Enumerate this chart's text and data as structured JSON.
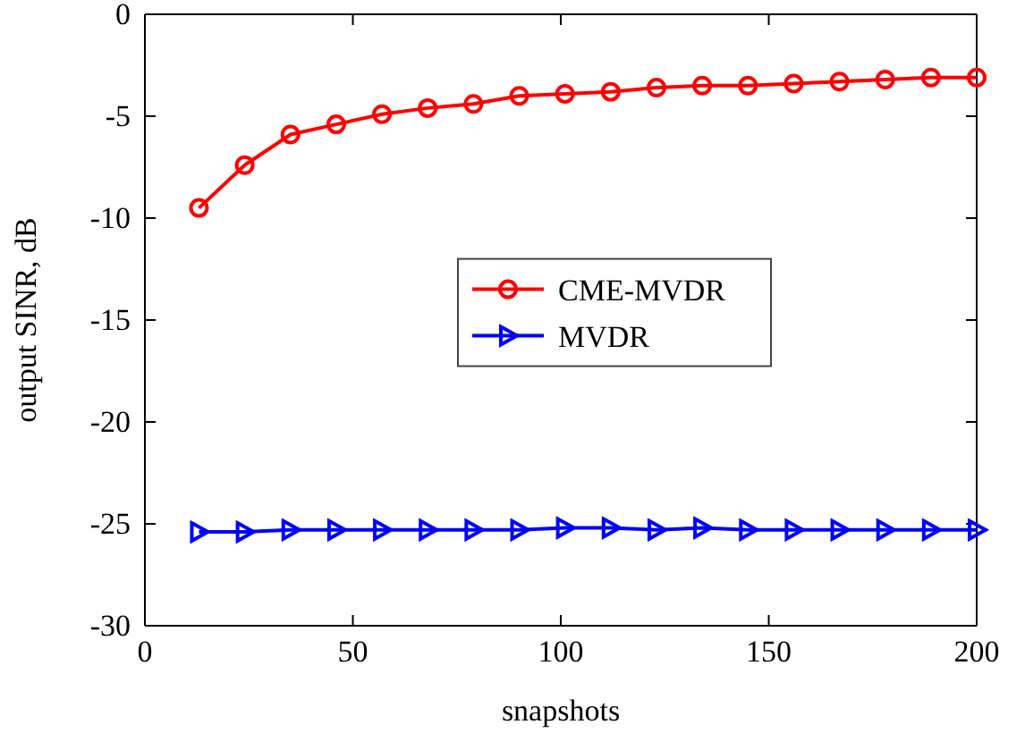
{
  "chart_data": {
    "type": "line",
    "xlabel": "snapshots",
    "ylabel": "output SINR, dB",
    "x": [
      13,
      24,
      35,
      46,
      57,
      68,
      79,
      90,
      101,
      112,
      123,
      134,
      145,
      156,
      167,
      178,
      189,
      200
    ],
    "xlim": [
      0,
      200
    ],
    "xticks": [
      0,
      50,
      100,
      150,
      200
    ],
    "ylim": [
      -30,
      0
    ],
    "yticks": [
      -30,
      -25,
      -20,
      -15,
      -10,
      -5,
      0
    ],
    "grid": false,
    "legend": "center",
    "line_style": "solid",
    "series": [
      {
        "name": "CME-MVDR",
        "color": "#ff0000",
        "marker": "circle",
        "values": [
          -9.5,
          -7.4,
          -5.9,
          -5.4,
          -4.9,
          -4.6,
          -4.4,
          -4.0,
          -3.9,
          -3.8,
          -3.6,
          -3.5,
          -3.5,
          -3.4,
          -3.3,
          -3.2,
          -3.1,
          -3.1
        ]
      },
      {
        "name": "MVDR",
        "color": "#0000ff",
        "marker": "triangle",
        "values": [
          -25.4,
          -25.4,
          -25.3,
          -25.3,
          -25.3,
          -25.3,
          -25.3,
          -25.3,
          -25.2,
          -25.2,
          -25.3,
          -25.2,
          -25.3,
          -25.3,
          -25.3,
          -25.3,
          -25.3,
          -25.3
        ]
      }
    ]
  }
}
